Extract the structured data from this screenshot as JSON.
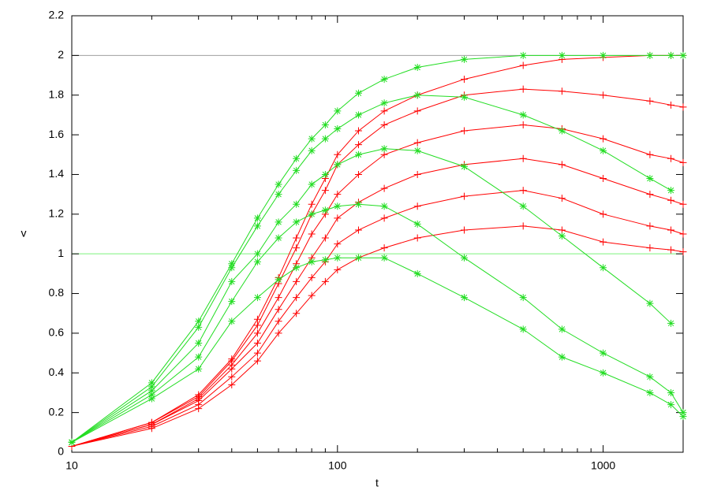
{
  "chart_data": {
    "type": "line",
    "x_label": "t",
    "y_label": "v",
    "xscale": "log",
    "xlim": [
      10,
      2000
    ],
    "ylim": [
      0,
      2.2
    ],
    "xticks": [
      10,
      100,
      1000
    ],
    "xminorticks": [
      20,
      30,
      40,
      50,
      60,
      70,
      80,
      90,
      200,
      300,
      400,
      500,
      600,
      700,
      800,
      900,
      2000
    ],
    "yticks": [
      0,
      0.2,
      0.4,
      0.6,
      0.8,
      1,
      1.2,
      1.4,
      1.6,
      1.8,
      2,
      2.2
    ],
    "hlines": [
      {
        "value": 2,
        "color": "#a0a0a0"
      },
      {
        "value": 1,
        "color": "#7cf27c"
      }
    ],
    "x": [
      10,
      20,
      30,
      40,
      50,
      60,
      70,
      80,
      90,
      100,
      120,
      150,
      200,
      300,
      500,
      700,
      1000,
      1500,
      1800,
      2000
    ],
    "series": [
      {
        "color": "#ff0000",
        "marker": "plus",
        "values": [
          0.03,
          0.15,
          0.29,
          0.47,
          0.67,
          0.88,
          1.08,
          1.25,
          1.38,
          1.5,
          1.62,
          1.72,
          1.8,
          1.88,
          1.95,
          1.98,
          1.99,
          2.0,
          2.0,
          2.0
        ]
      },
      {
        "color": "#ff0000",
        "marker": "plus",
        "values": [
          0.03,
          0.15,
          0.28,
          0.46,
          0.64,
          0.85,
          1.03,
          1.2,
          1.32,
          1.45,
          1.55,
          1.65,
          1.72,
          1.8,
          1.83,
          1.82,
          1.8,
          1.77,
          1.75,
          1.74
        ]
      },
      {
        "color": "#ff0000",
        "marker": "plus",
        "values": [
          0.03,
          0.14,
          0.27,
          0.44,
          0.6,
          0.78,
          0.95,
          1.1,
          1.2,
          1.3,
          1.4,
          1.5,
          1.56,
          1.62,
          1.65,
          1.63,
          1.58,
          1.5,
          1.48,
          1.46
        ]
      },
      {
        "color": "#ff0000",
        "marker": "plus",
        "values": [
          0.03,
          0.14,
          0.26,
          0.42,
          0.55,
          0.72,
          0.86,
          0.98,
          1.08,
          1.18,
          1.26,
          1.33,
          1.4,
          1.45,
          1.48,
          1.45,
          1.38,
          1.3,
          1.27,
          1.25
        ]
      },
      {
        "color": "#ff0000",
        "marker": "plus",
        "values": [
          0.03,
          0.13,
          0.24,
          0.38,
          0.5,
          0.66,
          0.78,
          0.88,
          0.96,
          1.05,
          1.12,
          1.18,
          1.24,
          1.29,
          1.32,
          1.28,
          1.2,
          1.14,
          1.12,
          1.1
        ]
      },
      {
        "color": "#ff0000",
        "marker": "plus",
        "values": [
          0.03,
          0.12,
          0.22,
          0.34,
          0.46,
          0.6,
          0.7,
          0.79,
          0.86,
          0.92,
          0.98,
          1.03,
          1.08,
          1.12,
          1.14,
          1.12,
          1.06,
          1.03,
          1.02,
          1.01
        ]
      },
      {
        "color": "#22dd22",
        "marker": "star",
        "values": [
          0.05,
          0.35,
          0.66,
          0.95,
          1.18,
          1.35,
          1.48,
          1.58,
          1.65,
          1.72,
          1.81,
          1.88,
          1.94,
          1.98,
          2.0,
          2.0,
          2.0,
          2.0,
          2.0,
          2.0
        ]
      },
      {
        "color": "#22dd22",
        "marker": "star",
        "values": [
          0.05,
          0.33,
          0.63,
          0.93,
          1.14,
          1.3,
          1.42,
          1.52,
          1.58,
          1.63,
          1.7,
          1.76,
          1.8,
          1.79,
          1.7,
          1.62,
          1.52,
          1.38,
          1.32,
          null
        ]
      },
      {
        "color": "#22dd22",
        "marker": "star",
        "values": [
          0.05,
          0.31,
          0.55,
          0.86,
          1.0,
          1.16,
          1.25,
          1.35,
          1.4,
          1.45,
          1.5,
          1.53,
          1.52,
          1.44,
          1.24,
          1.09,
          0.93,
          0.75,
          0.65,
          null
        ]
      },
      {
        "color": "#22dd22",
        "marker": "star",
        "values": [
          0.05,
          0.29,
          0.48,
          0.76,
          0.96,
          1.08,
          1.16,
          1.2,
          1.22,
          1.24,
          1.25,
          1.24,
          1.15,
          0.98,
          0.78,
          0.62,
          0.5,
          0.38,
          0.3,
          0.2
        ]
      },
      {
        "color": "#22dd22",
        "marker": "star",
        "values": [
          0.05,
          0.27,
          0.42,
          0.66,
          0.78,
          0.87,
          0.93,
          0.96,
          0.97,
          0.98,
          0.98,
          0.98,
          0.9,
          0.78,
          0.62,
          0.48,
          0.4,
          0.3,
          0.24,
          0.18
        ]
      }
    ]
  }
}
